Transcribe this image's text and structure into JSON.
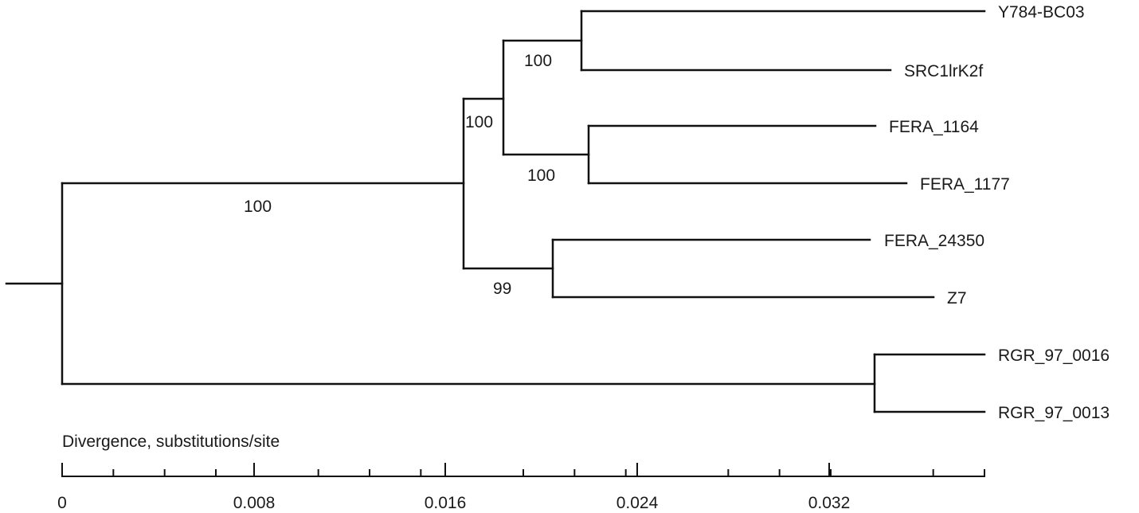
{
  "tree": {
    "leaves": [
      {
        "label": "Y784-BC03"
      },
      {
        "label": "SRC1lrK2f"
      },
      {
        "label": "FERA_1164"
      },
      {
        "label": "FERA_1177"
      },
      {
        "label": "FERA_24350"
      },
      {
        "label": "Z7"
      },
      {
        "label": "RGR_97_0016"
      },
      {
        "label": "RGR_97_0013"
      }
    ],
    "support_values": [
      "100",
      "100",
      "100",
      "100",
      "99"
    ]
  },
  "scale": {
    "title": "Divergence, substitutions/site",
    "range": [
      0,
      0.036
    ],
    "major_ticks": [
      "0",
      "0.008",
      "0.016",
      "0.024",
      "0.032"
    ],
    "minor_step": 0.002
  }
}
